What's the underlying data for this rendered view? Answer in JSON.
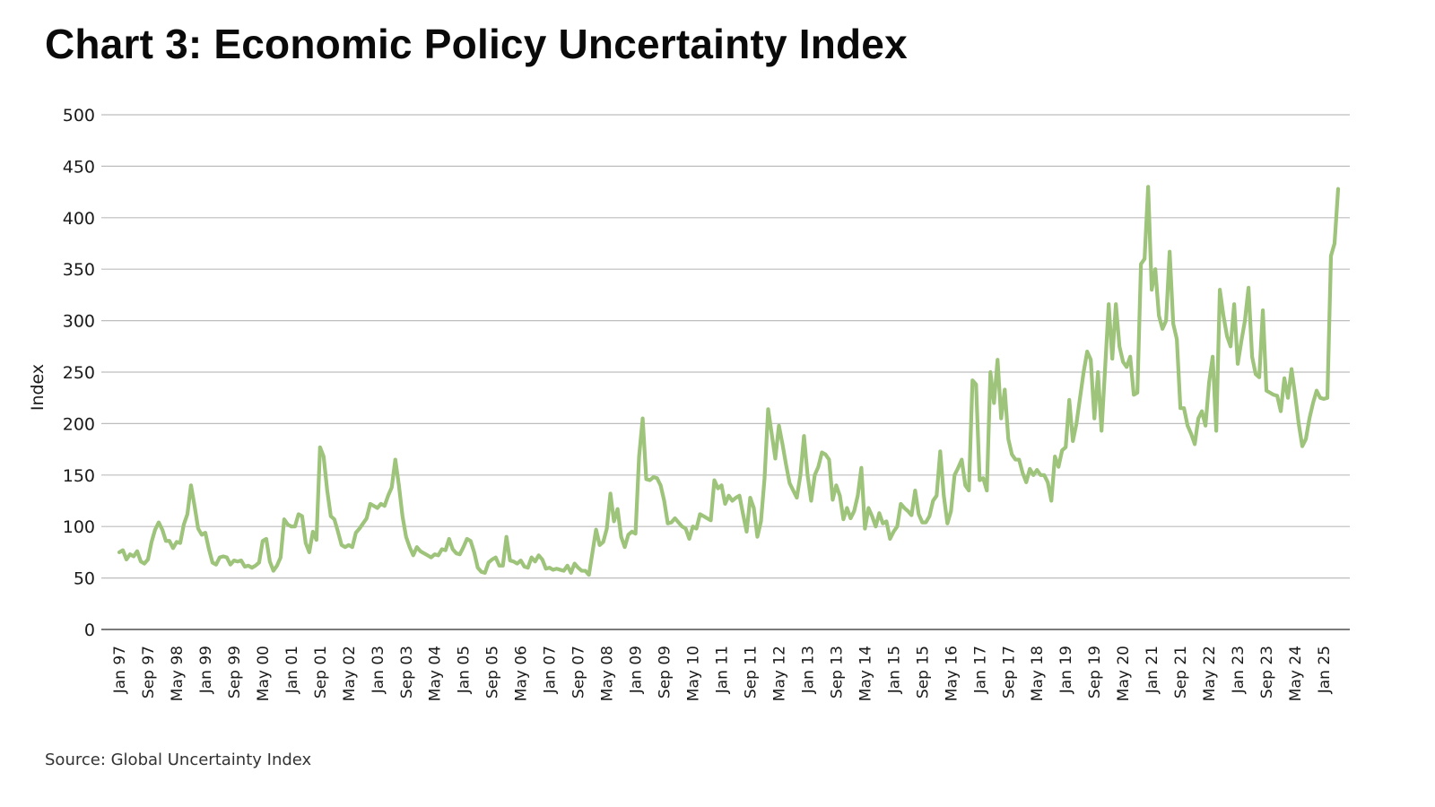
{
  "title": "Chart 3: Economic Policy Uncertainty Index",
  "source": "Source: Global Uncertainty Index",
  "chart_data": {
    "type": "line",
    "title": "Chart 3: Economic Policy Uncertainty Index",
    "xlabel": "",
    "ylabel": "Index",
    "ylim": [
      0,
      500
    ],
    "yticks": [
      0,
      50,
      100,
      150,
      200,
      250,
      300,
      350,
      400,
      450,
      500
    ],
    "grid": true,
    "legend": "none",
    "line_color": "#9dc47a",
    "x_start": "Jan 97",
    "x_end": "Jan 25",
    "x_frequency": "monthly",
    "xtick_labels": [
      "Jan 97",
      "Sep 97",
      "May 98",
      "Jan 99",
      "Sep 99",
      "May 00",
      "Jan 01",
      "Sep 01",
      "May 02",
      "Jan 03",
      "Sep 03",
      "May 04",
      "Jan 05",
      "Sep 05",
      "May 06",
      "Jan 07",
      "Sep 07",
      "May 08",
      "Jan 09",
      "Sep 09",
      "May 10",
      "Jan 11",
      "Sep 11",
      "May 12",
      "Jan 13",
      "Sep 13",
      "May 14",
      "Jan 15",
      "Sep 15",
      "May 16",
      "Jan 17",
      "Sep 17",
      "May 18",
      "Jan 19",
      "Sep 19",
      "May 20",
      "Jan 21",
      "Sep 21",
      "May 22",
      "Jan 23",
      "Sep 23",
      "May 24",
      "Jan 25"
    ],
    "xtick_interval_months": 8,
    "series": [
      {
        "name": "Economic Policy Uncertainty Index",
        "values": [
          75,
          77,
          68,
          73,
          71,
          76,
          66,
          64,
          68,
          85,
          97,
          104,
          97,
          86,
          86,
          79,
          85,
          84,
          102,
          112,
          140,
          120,
          98,
          92,
          94,
          78,
          65,
          63,
          70,
          71,
          70,
          63,
          67,
          66,
          67,
          61,
          62,
          60,
          62,
          65,
          86,
          88,
          66,
          57,
          62,
          70,
          107,
          102,
          100,
          100,
          112,
          110,
          84,
          75,
          95,
          87,
          177,
          168,
          135,
          110,
          107,
          95,
          82,
          80,
          82,
          80,
          94,
          98,
          103,
          108,
          122,
          120,
          118,
          122,
          120,
          130,
          138,
          165,
          140,
          110,
          90,
          80,
          72,
          80,
          76,
          74,
          72,
          70,
          73,
          72,
          78,
          77,
          88,
          78,
          74,
          73,
          80,
          88,
          86,
          75,
          60,
          56,
          55,
          65,
          68,
          70,
          62,
          62,
          90,
          67,
          66,
          64,
          67,
          61,
          60,
          70,
          66,
          72,
          68,
          59,
          60,
          58,
          59,
          58,
          57,
          62,
          55,
          64,
          60,
          57,
          57,
          53,
          75,
          97,
          82,
          85,
          98,
          132,
          105,
          117,
          90,
          80,
          92,
          95,
          93,
          168,
          205,
          146,
          145,
          148,
          147,
          140,
          125,
          103,
          104,
          108,
          104,
          100,
          98,
          88,
          100,
          98,
          112,
          110,
          108,
          106,
          145,
          137,
          140,
          122,
          130,
          125,
          128,
          130,
          112,
          95,
          128,
          118,
          90,
          105,
          147,
          214,
          190,
          166,
          198,
          180,
          160,
          142,
          135,
          128,
          150,
          188,
          150,
          125,
          150,
          158,
          172,
          170,
          165,
          126,
          140,
          130,
          107,
          118,
          108,
          115,
          130,
          157,
          98,
          118,
          110,
          100,
          113,
          103,
          105,
          88,
          95,
          100,
          122,
          118,
          115,
          111,
          135,
          112,
          104,
          104,
          110,
          125,
          130,
          173,
          130,
          103,
          115,
          150,
          157,
          165,
          140,
          135,
          242,
          238,
          145,
          147,
          135,
          250,
          220,
          262,
          205,
          233,
          185,
          170,
          165,
          165,
          152,
          143,
          156,
          150,
          155,
          150,
          150,
          143,
          125,
          168,
          158,
          174,
          177,
          223,
          183,
          200,
          225,
          250,
          270,
          262,
          205,
          250,
          193,
          254,
          316,
          263,
          316,
          275,
          260,
          255,
          265,
          228,
          230,
          355,
          360,
          430,
          330,
          350,
          305,
          292,
          300,
          367,
          297,
          282,
          215,
          215,
          198,
          190,
          180,
          205,
          212,
          198,
          240,
          265,
          193,
          330,
          305,
          285,
          275,
          316,
          258,
          280,
          300,
          332,
          265,
          248,
          245,
          310,
          232,
          230,
          228,
          227,
          212,
          244,
          225,
          253,
          228,
          200,
          178,
          185,
          205,
          220,
          232,
          225,
          224,
          225,
          363,
          375,
          428
        ]
      }
    ]
  }
}
